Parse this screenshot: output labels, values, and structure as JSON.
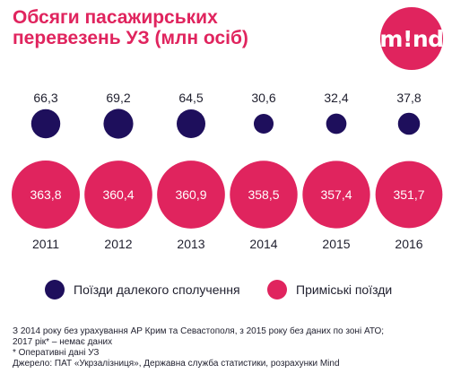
{
  "header": {
    "title_line1": "Обсяги пасажирських",
    "title_line2": "перевезень УЗ (млн осіб)",
    "logo_text": "m!nd"
  },
  "colors": {
    "long_distance": "#1e0f5c",
    "suburban": "#e0245e",
    "title": "#e0245e"
  },
  "chart_data": {
    "type": "bubble",
    "title": "Обсяги пасажирських перевезень УЗ (млн осіб)",
    "categories": [
      "2011",
      "2012",
      "2013",
      "2014",
      "2015",
      "2016"
    ],
    "series": [
      {
        "name": "Поїзди далекого сполучення",
        "values": [
          66.3,
          69.2,
          64.5,
          30.6,
          32.4,
          37.8
        ],
        "labels": [
          "66,3",
          "69,2",
          "64,5",
          "30,6",
          "32,4",
          "37,8"
        ]
      },
      {
        "name": "Приміські поїзди",
        "values": [
          363.8,
          360.4,
          360.9,
          358.5,
          357.4,
          351.7
        ],
        "labels": [
          "363,8",
          "360,4",
          "360,9",
          "358,5",
          "357,4",
          "351,7"
        ]
      }
    ]
  },
  "legend": {
    "long_distance": "Поїзди далекого сполучення",
    "suburban": "Приміські поїзди"
  },
  "notes": {
    "line1": "З 2014 року без урахування АР Крим та Севастополя, з 2015 року без даних по зоні АТО;",
    "line2": "2017 рік* – немає даних",
    "line3": "* Оперативні дані УЗ",
    "line4": "Джерело: ПАТ «Укрзалізниця», Державна служба статистики, розрахунки Mind"
  }
}
